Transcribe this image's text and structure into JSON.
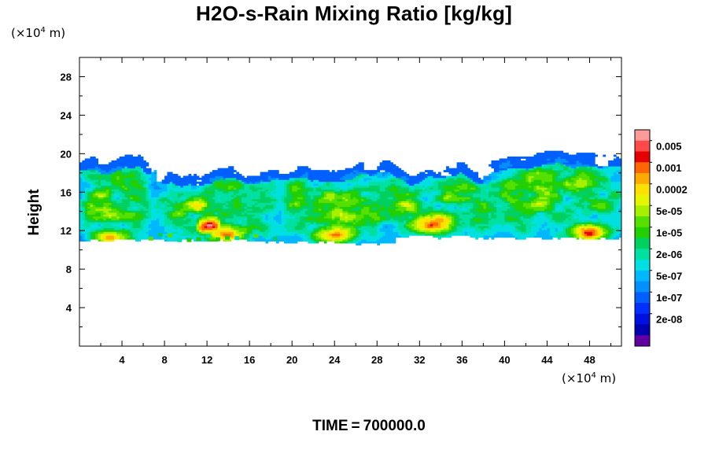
{
  "chart_data": {
    "type": "heatmap",
    "title": "H2O-s-Rain Mixing Ratio [kg/kg]",
    "xlabel": "",
    "ylabel": "Height",
    "x_unit": {
      "prefix": "(×10",
      "exp": "4",
      "suffix": " m)"
    },
    "y_unit": {
      "prefix": "(×10",
      "exp": "4",
      "suffix": " m)"
    },
    "xlim": [
      0,
      51
    ],
    "ylim": [
      0,
      30
    ],
    "x_ticks": [
      4,
      8,
      12,
      16,
      20,
      24,
      28,
      32,
      36,
      40,
      44,
      48
    ],
    "y_ticks": [
      4,
      8,
      12,
      16,
      20,
      24,
      28
    ],
    "colorbar": {
      "labels": [
        "0.005",
        "0.001",
        "0.0002",
        "5e-05",
        "1e-05",
        "2e-06",
        "5e-07",
        "1e-07",
        "2e-08"
      ],
      "colors": [
        "#ff9a9a",
        "#ff4a4a",
        "#e60000",
        "#ff6600",
        "#ffaa00",
        "#ffe000",
        "#e6f500",
        "#a6f000",
        "#55e000",
        "#22d000",
        "#00d060",
        "#00e0a0",
        "#00e0e0",
        "#00b8ff",
        "#0090ff",
        "#0060ff",
        "#0030ff",
        "#0010e0",
        "#0000b0",
        "#6000a0"
      ]
    },
    "regions": [
      {
        "x": [
          0.3,
          6.5
        ],
        "y": [
          10.8,
          19.4
        ],
        "peak": 0.92,
        "core": [
          2.8,
          11.2
        ]
      },
      {
        "x": [
          6.8,
          18.5
        ],
        "y": [
          10.8,
          18.3
        ],
        "peak": 0.88,
        "core": [
          13.8,
          11.5
        ]
      },
      {
        "x": [
          11.5,
          12.6
        ],
        "y": [
          11.0,
          14.5
        ],
        "peak": 0.8,
        "core": [
          12.0,
          12.5
        ]
      },
      {
        "x": [
          19.0,
          29.0
        ],
        "y": [
          10.6,
          18.4
        ],
        "peak": 0.95,
        "core": [
          24.0,
          11.4
        ]
      },
      {
        "x": [
          28.0,
          40.0
        ],
        "y": [
          11.2,
          18.6
        ],
        "peak": 0.7,
        "core": [
          33.0,
          12.5
        ]
      },
      {
        "x": [
          38.5,
          51.0
        ],
        "y": [
          11.0,
          19.6
        ],
        "peak": 0.9,
        "core": [
          48.0,
          11.6
        ]
      }
    ],
    "time_label": "TIME",
    "time_eq": "=",
    "time_value": "700000.0"
  }
}
